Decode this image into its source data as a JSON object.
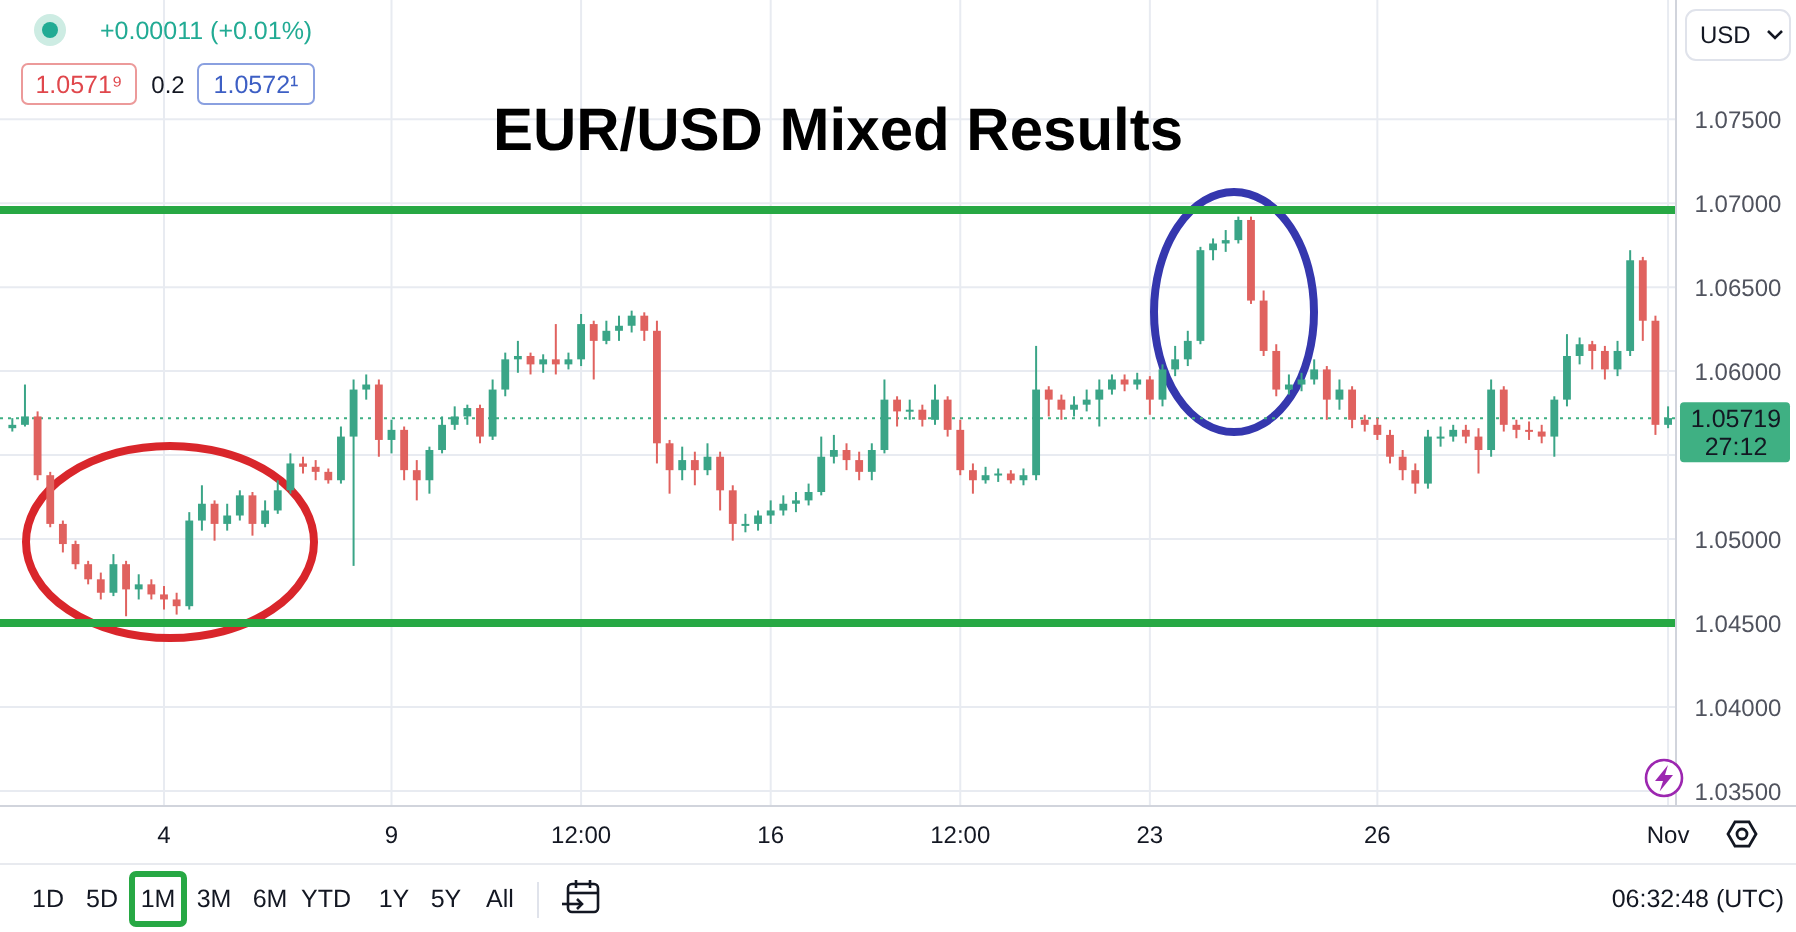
{
  "chart_data": {
    "type": "candlestick",
    "title": "EUR/USD Mixed Results",
    "ylabel": "USD",
    "categories": [
      null,
      null,
      null,
      null,
      null,
      null,
      null,
      null,
      null,
      null,
      null,
      null,
      "4",
      null,
      null,
      null,
      null,
      null,
      null,
      null,
      null,
      null,
      null,
      null,
      null,
      null,
      null,
      null,
      null,
      null,
      "9",
      null,
      null,
      null,
      null,
      null,
      null,
      null,
      null,
      null,
      null,
      null,
      null,
      null,
      null,
      "12:00",
      null,
      null,
      null,
      null,
      null,
      null,
      null,
      null,
      null,
      null,
      null,
      null,
      null,
      null,
      "16",
      null,
      null,
      null,
      null,
      null,
      null,
      null,
      null,
      null,
      null,
      null,
      null,
      null,
      null,
      "12:00",
      null,
      null,
      null,
      null,
      null,
      null,
      null,
      null,
      null,
      null,
      null,
      null,
      null,
      null,
      "23",
      null,
      null,
      null,
      null,
      null,
      null,
      null,
      null,
      null,
      null,
      null,
      null,
      null,
      null,
      null,
      null,
      null,
      "26",
      null,
      null,
      null,
      null,
      null,
      null,
      null,
      null,
      null,
      null,
      null,
      null,
      null,
      null,
      null,
      null,
      null,
      null,
      null,
      null,
      null,
      null,
      "Nov"
    ],
    "ohlc": [
      [
        1.0566,
        1.0572,
        1.0564,
        1.0568
      ],
      [
        1.0568,
        1.0592,
        1.0567,
        1.0573
      ],
      [
        1.0573,
        1.0576,
        1.0535,
        1.0538
      ],
      [
        1.0538,
        1.054,
        1.0507,
        1.0509
      ],
      [
        1.0509,
        1.0511,
        1.0492,
        1.0497
      ],
      [
        1.0497,
        1.0499,
        1.0482,
        1.0485
      ],
      [
        1.0485,
        1.0487,
        1.0473,
        1.0476
      ],
      [
        1.0476,
        1.048,
        1.0464,
        1.0468
      ],
      [
        1.0468,
        1.0491,
        1.0466,
        1.0485
      ],
      [
        1.0485,
        1.0487,
        1.0454,
        1.047
      ],
      [
        1.047,
        1.0479,
        1.0464,
        1.0473
      ],
      [
        1.0473,
        1.0476,
        1.0464,
        1.0467
      ],
      [
        1.0467,
        1.0472,
        1.0458,
        1.0464
      ],
      [
        1.0464,
        1.0468,
        1.0455,
        1.046
      ],
      [
        1.046,
        1.0516,
        1.0458,
        1.0511
      ],
      [
        1.0511,
        1.0532,
        1.0505,
        1.0521
      ],
      [
        1.0521,
        1.0523,
        1.0499,
        1.0509
      ],
      [
        1.0509,
        1.0521,
        1.0505,
        1.0514
      ],
      [
        1.0514,
        1.0529,
        1.0511,
        1.0526
      ],
      [
        1.0526,
        1.0528,
        1.0502,
        1.0509
      ],
      [
        1.0509,
        1.0523,
        1.0507,
        1.0517
      ],
      [
        1.0517,
        1.0535,
        1.0515,
        1.0529
      ],
      [
        1.0529,
        1.0551,
        1.0527,
        1.0545
      ],
      [
        1.0545,
        1.0549,
        1.0539,
        1.0543
      ],
      [
        1.0543,
        1.0547,
        1.0535,
        1.054
      ],
      [
        1.054,
        1.0542,
        1.0533,
        1.0535
      ],
      [
        1.0535,
        1.0567,
        1.0533,
        1.0561
      ],
      [
        1.0561,
        1.0595,
        1.0484,
        1.0589
      ],
      [
        1.0589,
        1.0598,
        1.0583,
        1.0592
      ],
      [
        1.0592,
        1.0595,
        1.0549,
        1.0559
      ],
      [
        1.0559,
        1.0571,
        1.0551,
        1.0565
      ],
      [
        1.0565,
        1.0567,
        1.0535,
        1.0541
      ],
      [
        1.0541,
        1.0547,
        1.0523,
        1.0535
      ],
      [
        1.0535,
        1.0555,
        1.0527,
        1.0553
      ],
      [
        1.0553,
        1.0573,
        1.0551,
        1.0568
      ],
      [
        1.0568,
        1.0579,
        1.0565,
        1.0573
      ],
      [
        1.0573,
        1.058,
        1.0568,
        1.0578
      ],
      [
        1.0578,
        1.058,
        1.0557,
        1.0561
      ],
      [
        1.0561,
        1.0595,
        1.0559,
        1.0589
      ],
      [
        1.0589,
        1.0611,
        1.0585,
        1.0607
      ],
      [
        1.0607,
        1.0618,
        1.0599,
        1.0609
      ],
      [
        1.0609,
        1.0611,
        1.0598,
        1.0604
      ],
      [
        1.0604,
        1.061,
        1.0599,
        1.0607
      ],
      [
        1.0607,
        1.0628,
        1.0598,
        1.0604
      ],
      [
        1.0604,
        1.0611,
        1.0601,
        1.0607
      ],
      [
        1.0607,
        1.0634,
        1.0603,
        1.0628
      ],
      [
        1.0628,
        1.063,
        1.0595,
        1.0618
      ],
      [
        1.0618,
        1.063,
        1.0616,
        1.0624
      ],
      [
        1.0624,
        1.0633,
        1.0618,
        1.0627
      ],
      [
        1.0627,
        1.0636,
        1.0623,
        1.0633
      ],
      [
        1.0633,
        1.0635,
        1.0618,
        1.0624
      ],
      [
        1.0624,
        1.063,
        1.0545,
        1.0557
      ],
      [
        1.0557,
        1.0559,
        1.0527,
        1.0541
      ],
      [
        1.0541,
        1.0555,
        1.0535,
        1.0547
      ],
      [
        1.0547,
        1.0552,
        1.0532,
        1.0541
      ],
      [
        1.0541,
        1.0557,
        1.0538,
        1.0549
      ],
      [
        1.0549,
        1.0552,
        1.0517,
        1.0529
      ],
      [
        1.0529,
        1.0532,
        1.0499,
        1.0509
      ],
      [
        1.0509,
        1.0515,
        1.0504,
        1.0509
      ],
      [
        1.0509,
        1.0517,
        1.0505,
        1.0514
      ],
      [
        1.0514,
        1.0523,
        1.0509,
        1.0517
      ],
      [
        1.0517,
        1.0526,
        1.0514,
        1.0521
      ],
      [
        1.0521,
        1.0528,
        1.0516,
        1.0523
      ],
      [
        1.0523,
        1.0533,
        1.052,
        1.0528
      ],
      [
        1.0528,
        1.0561,
        1.0526,
        1.0549
      ],
      [
        1.0549,
        1.0562,
        1.0545,
        1.0553
      ],
      [
        1.0553,
        1.0557,
        1.0541,
        1.0547
      ],
      [
        1.0547,
        1.0552,
        1.0535,
        1.054
      ],
      [
        1.054,
        1.0557,
        1.0535,
        1.0553
      ],
      [
        1.0553,
        1.0595,
        1.0551,
        1.0583
      ],
      [
        1.0583,
        1.0585,
        1.0567,
        1.0576
      ],
      [
        1.0576,
        1.0583,
        1.0571,
        1.0577
      ],
      [
        1.0577,
        1.058,
        1.0567,
        1.0571
      ],
      [
        1.0571,
        1.0592,
        1.0568,
        1.0583
      ],
      [
        1.0583,
        1.0585,
        1.0561,
        1.0565
      ],
      [
        1.0565,
        1.0571,
        1.0538,
        1.0541
      ],
      [
        1.0541,
        1.0545,
        1.0527,
        1.0535
      ],
      [
        1.0535,
        1.0543,
        1.0533,
        1.0538
      ],
      [
        1.0538,
        1.0542,
        1.0534,
        1.0539
      ],
      [
        1.0539,
        1.0541,
        1.0533,
        1.0535
      ],
      [
        1.0535,
        1.0542,
        1.0532,
        1.0538
      ],
      [
        1.0538,
        1.0615,
        1.0535,
        1.0589
      ],
      [
        1.0589,
        1.0591,
        1.0573,
        1.0583
      ],
      [
        1.0583,
        1.0586,
        1.0571,
        1.0577
      ],
      [
        1.0577,
        1.0585,
        1.0573,
        1.058
      ],
      [
        1.058,
        1.0589,
        1.0576,
        1.0583
      ],
      [
        1.0583,
        1.0595,
        1.0567,
        1.0589
      ],
      [
        1.0589,
        1.0598,
        1.0586,
        1.0595
      ],
      [
        1.0595,
        1.0598,
        1.0588,
        1.0592
      ],
      [
        1.0592,
        1.0599,
        1.0589,
        1.0595
      ],
      [
        1.0595,
        1.0597,
        1.0574,
        1.0583
      ],
      [
        1.0583,
        1.0604,
        1.0579,
        1.0601
      ],
      [
        1.0601,
        1.0615,
        1.0597,
        1.0607
      ],
      [
        1.0607,
        1.0624,
        1.0603,
        1.0618
      ],
      [
        1.0618,
        1.0674,
        1.0616,
        1.0672
      ],
      [
        1.0672,
        1.0679,
        1.0666,
        1.0676
      ],
      [
        1.0676,
        1.0684,
        1.0671,
        1.0678
      ],
      [
        1.0678,
        1.0692,
        1.0676,
        1.069
      ],
      [
        1.069,
        1.0692,
        1.064,
        1.0642
      ],
      [
        1.0642,
        1.0648,
        1.0609,
        1.0612
      ],
      [
        1.0612,
        1.0616,
        1.0585,
        1.0589
      ],
      [
        1.0589,
        1.0598,
        1.0586,
        1.0592
      ],
      [
        1.0592,
        1.0599,
        1.0588,
        1.0595
      ],
      [
        1.0595,
        1.0607,
        1.0592,
        1.0601
      ],
      [
        1.0601,
        1.0603,
        1.0571,
        1.0583
      ],
      [
        1.0583,
        1.0595,
        1.0577,
        1.0589
      ],
      [
        1.0589,
        1.0591,
        1.0566,
        1.0571
      ],
      [
        1.0571,
        1.0574,
        1.0564,
        1.0568
      ],
      [
        1.0568,
        1.0572,
        1.0559,
        1.0562
      ],
      [
        1.0562,
        1.0565,
        1.0545,
        1.0549
      ],
      [
        1.0549,
        1.0553,
        1.0535,
        1.0541
      ],
      [
        1.0541,
        1.0545,
        1.0527,
        1.0533
      ],
      [
        1.0533,
        1.0565,
        1.053,
        1.0561
      ],
      [
        1.0561,
        1.0567,
        1.0555,
        1.0561
      ],
      [
        1.0561,
        1.0568,
        1.0558,
        1.0565
      ],
      [
        1.0565,
        1.0568,
        1.0557,
        1.0561
      ],
      [
        1.0561,
        1.0566,
        1.0539,
        1.0553
      ],
      [
        1.0553,
        1.0595,
        1.0549,
        1.0589
      ],
      [
        1.0589,
        1.0591,
        1.0564,
        1.0568
      ],
      [
        1.0568,
        1.0571,
        1.056,
        1.0565
      ],
      [
        1.0565,
        1.057,
        1.0559,
        1.0564
      ],
      [
        1.0564,
        1.0568,
        1.0557,
        1.0561
      ],
      [
        1.0561,
        1.0585,
        1.0549,
        1.0583
      ],
      [
        1.0583,
        1.0622,
        1.0579,
        1.0609
      ],
      [
        1.0609,
        1.062,
        1.0604,
        1.0616
      ],
      [
        1.0616,
        1.0618,
        1.0601,
        1.0612
      ],
      [
        1.0612,
        1.0615,
        1.0595,
        1.0601
      ],
      [
        1.0601,
        1.0618,
        1.0597,
        1.0612
      ],
      [
        1.0612,
        1.0672,
        1.0609,
        1.0666
      ],
      [
        1.0666,
        1.0668,
        1.0618,
        1.063
      ],
      [
        1.063,
        1.0633,
        1.0562,
        1.0568
      ],
      [
        1.0568,
        1.0579,
        1.0566,
        1.0572
      ]
    ],
    "ylim": [
      1.0341,
      1.0821
    ],
    "yticks": [
      {
        "value": 1.035,
        "label": "1.03500"
      },
      {
        "value": 1.04,
        "label": "1.04000"
      },
      {
        "value": 1.045,
        "label": "1.04500"
      },
      {
        "value": 1.05,
        "label": "1.05000"
      },
      {
        "value": 1.055,
        "label": null
      },
      {
        "value": 1.06,
        "label": "1.06000"
      },
      {
        "value": 1.065,
        "label": "1.06500"
      },
      {
        "value": 1.07,
        "label": "1.07000"
      },
      {
        "value": 1.075,
        "label": "1.07500"
      }
    ],
    "grid": true,
    "ref_lines": [
      {
        "axis": "y",
        "value": 1.0696,
        "color": "#27a844"
      },
      {
        "axis": "y",
        "value": 1.045,
        "color": "#27a844"
      },
      {
        "axis": "y",
        "value": 1.05719,
        "label": "1.05719",
        "color": "#3fb083",
        "line_style": "dotted"
      }
    ],
    "annotations": [
      "+0.00011 (+0.01%)",
      "1.0571⁹",
      "0.2",
      "1.0572¹",
      "27:12",
      "1D",
      "5D",
      "1M",
      "3M",
      "6M",
      "YTD",
      "1Y",
      "5Y",
      "All",
      "06:32:48 (UTC)"
    ]
  }
}
